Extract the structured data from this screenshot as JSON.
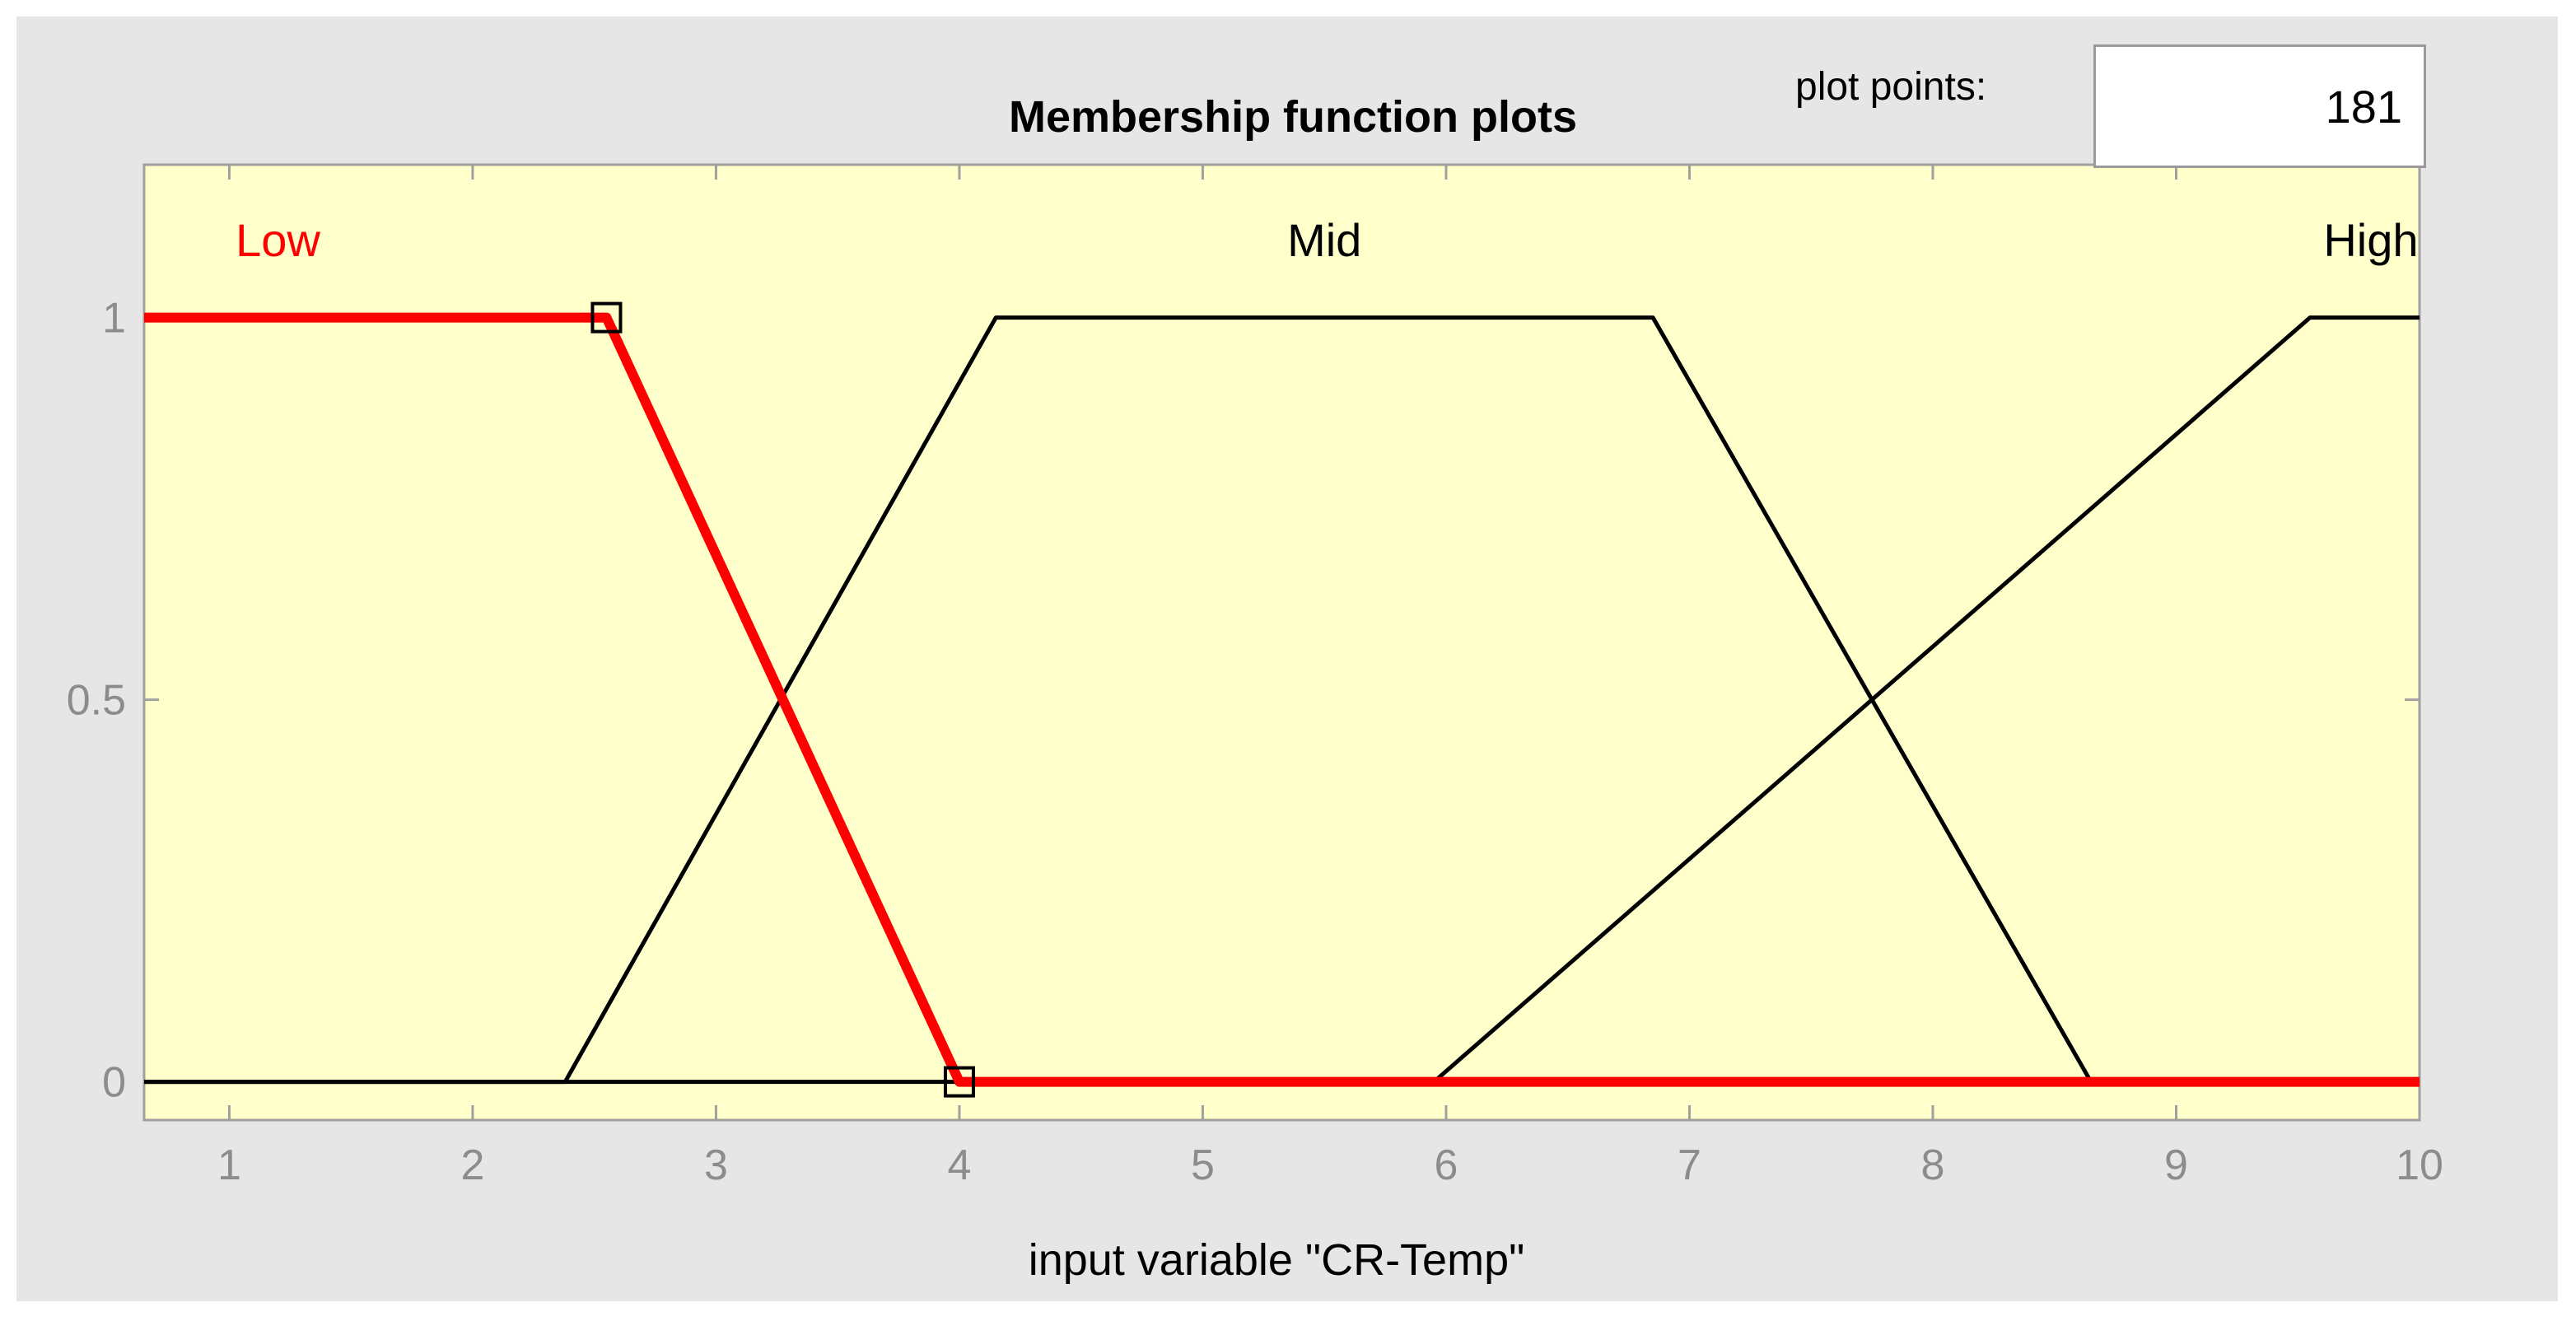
{
  "controls": {
    "plot_points_label": "plot points:",
    "plot_points_value": "181"
  },
  "colors": {
    "panel_bg": "#e6e6e6",
    "plot_bg": "#ffffcc",
    "selected": "#ff0000",
    "line": "#000000",
    "tick_label": "#8c8c8c"
  },
  "chart_data": {
    "type": "line",
    "title": "Membership function plots",
    "xlabel": "input variable \"CR-Temp\"",
    "ylabel": "",
    "xlim": [
      0.65,
      10
    ],
    "ylim": [
      -0.05,
      1.2
    ],
    "xticks": [
      1,
      2,
      3,
      4,
      5,
      6,
      7,
      8,
      9,
      10
    ],
    "yticks": [
      0,
      0.5,
      1
    ],
    "grid": false,
    "series": [
      {
        "name": "Low",
        "selected": true,
        "color": "#ff0000",
        "x": [
          0.65,
          2.55,
          4.0,
          10
        ],
        "y": [
          1,
          1,
          0,
          0
        ],
        "label_x": 1.2,
        "label_y": 1.1
      },
      {
        "name": "Mid",
        "selected": false,
        "color": "#000000",
        "x": [
          0.65,
          2.38,
          4.15,
          6.85,
          8.65,
          10
        ],
        "y": [
          0,
          0,
          1,
          1,
          0,
          0
        ],
        "label_x": 5.5,
        "label_y": 1.1
      },
      {
        "name": "High",
        "selected": false,
        "color": "#000000",
        "x": [
          0.65,
          5.95,
          9.55,
          10
        ],
        "y": [
          0,
          0,
          1,
          1
        ],
        "label_x": 9.8,
        "label_y": 1.1
      }
    ],
    "handles": [
      {
        "x": 2.55,
        "y": 1
      },
      {
        "x": 4.0,
        "y": 0
      }
    ]
  }
}
